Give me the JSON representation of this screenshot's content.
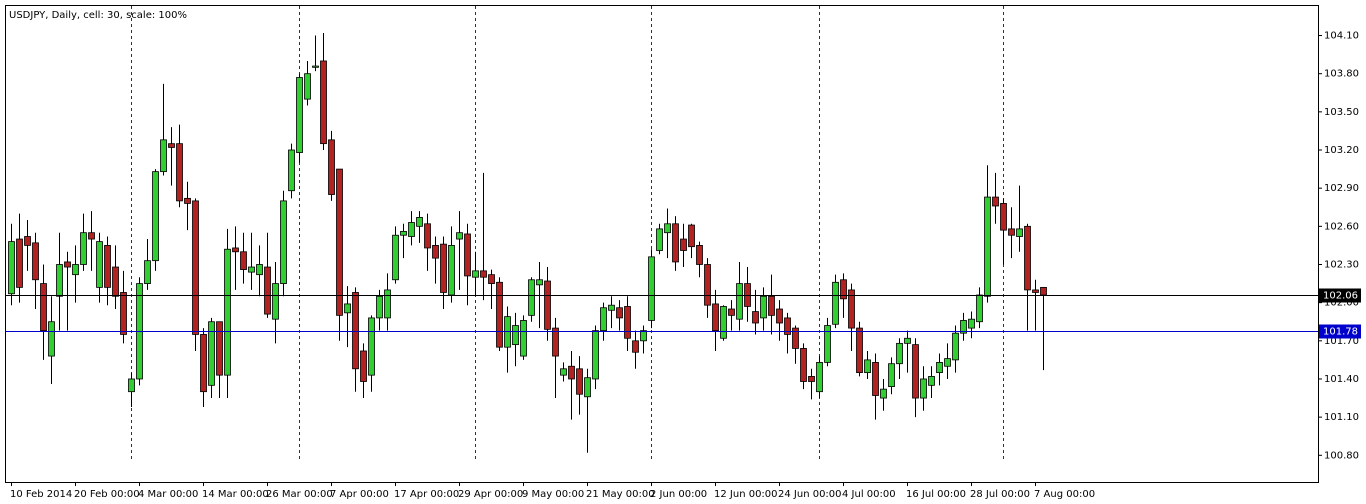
{
  "chart_data": {
    "type": "candlestick",
    "title": "USDJPY, Daily, cell: 30, scale: 100%",
    "categories": [
      "10 Feb 2014",
      null,
      null,
      null,
      null,
      null,
      null,
      null,
      "20 Feb 00:00",
      null,
      null,
      null,
      null,
      null,
      null,
      null,
      "4 Mar 00:00",
      null,
      null,
      null,
      null,
      null,
      null,
      null,
      "14 Mar 00:00",
      null,
      null,
      null,
      null,
      null,
      null,
      null,
      "26 Mar 00:00",
      null,
      null,
      null,
      null,
      null,
      null,
      null,
      "7 Apr 00:00",
      null,
      null,
      null,
      null,
      null,
      null,
      null,
      "17 Apr 00:00",
      null,
      null,
      null,
      null,
      null,
      null,
      null,
      "29 Apr 00:00",
      null,
      null,
      null,
      null,
      null,
      null,
      null,
      "9 May 00:00",
      null,
      null,
      null,
      null,
      null,
      null,
      null,
      "21 May 00:00",
      null,
      null,
      null,
      null,
      null,
      null,
      null,
      "2 Jun 00:00",
      null,
      null,
      null,
      null,
      null,
      null,
      null,
      "12 Jun 00:00",
      null,
      null,
      null,
      null,
      null,
      null,
      null,
      "24 Jun 00:00",
      null,
      null,
      null,
      null,
      null,
      null,
      null,
      "4 Jul 00:00",
      null,
      null,
      null,
      null,
      null,
      null,
      null,
      "16 Jul 00:00",
      null,
      null,
      null,
      null,
      null,
      null,
      null,
      "28 Jul 00:00",
      null,
      null,
      null,
      null,
      null,
      null,
      null,
      "7 Aug 00:00",
      null
    ],
    "open": [
      102.07,
      102.5,
      102.52,
      102.47,
      102.15,
      101.58,
      102.05,
      102.32,
      102.22,
      102.3,
      102.55,
      102.12,
      102.45,
      102.28,
      102.08,
      101.3,
      101.4,
      102.15,
      102.33,
      103.03,
      103.25,
      103.25,
      102.82,
      102.8,
      101.75,
      101.35,
      101.85,
      101.43,
      102.43,
      102.4,
      102.24,
      102.22,
      102.28,
      101.87,
      102.15,
      102.88,
      103.18,
      103.6,
      103.85,
      103.9,
      103.28,
      103.05,
      101.92,
      102.08,
      101.62,
      101.43,
      101.88,
      101.88,
      102.18,
      102.53,
      102.52,
      102.6,
      102.62,
      102.45,
      102.46,
      102.06,
      102.5,
      102.54,
      102.2,
      102.25,
      102.22,
      102.16,
      101.65,
      101.67,
      101.58,
      101.9,
      102.14,
      102.17,
      101.8,
      101.43,
      101.5,
      101.48,
      101.26,
      101.4,
      101.78,
      101.94,
      101.96,
      101.97,
      101.7,
      101.7,
      101.86,
      102.41,
      102.55,
      102.62,
      102.5,
      102.61,
      102.45,
      102.3,
      101.99,
      101.72,
      101.95,
      101.87,
      102.15,
      101.93,
      101.88,
      102.05,
      101.95,
      101.88,
      101.8,
      101.64,
      101.42,
      101.3,
      101.53,
      101.83,
      102.18,
      102.1,
      101.8,
      101.45,
      101.53,
      101.25,
      101.34,
      101.52,
      101.68,
      101.67,
      101.25,
      101.35,
      101.45,
      101.5,
      101.55,
      101.76,
      101.8,
      101.85,
      102.05,
      102.83,
      102.78,
      102.58,
      102.52,
      102.6,
      102.1,
      102.12
    ],
    "high": [
      102.62,
      102.7,
      102.65,
      102.55,
      102.3,
      102.05,
      102.55,
      102.4,
      102.45,
      102.7,
      102.72,
      102.55,
      102.52,
      102.45,
      102.25,
      101.45,
      102.2,
      102.5,
      103.05,
      103.72,
      103.38,
      103.4,
      102.95,
      102.82,
      101.8,
      101.88,
      101.85,
      102.58,
      102.6,
      102.55,
      102.55,
      102.45,
      102.55,
      102.32,
      102.88,
      103.25,
      103.8,
      103.9,
      104.1,
      104.12,
      103.35,
      103.05,
      102.13,
      102.12,
      101.68,
      101.9,
      102.1,
      102.23,
      102.6,
      102.62,
      102.72,
      102.72,
      102.7,
      102.52,
      102.52,
      102.6,
      102.72,
      102.62,
      102.4,
      103.02,
      102.26,
      102.2,
      101.97,
      101.92,
      101.9,
      102.2,
      102.32,
      102.28,
      101.88,
      101.53,
      101.62,
      101.58,
      101.48,
      101.82,
      102.0,
      102.05,
      102.02,
      102.05,
      101.78,
      101.82,
      102.42,
      102.62,
      102.74,
      102.68,
      102.62,
      102.62,
      102.48,
      102.35,
      102.1,
      101.98,
      102.02,
      102.32,
      102.28,
      102.1,
      102.12,
      102.22,
      102.02,
      101.92,
      101.82,
      101.68,
      101.48,
      101.58,
      101.88,
      102.22,
      102.23,
      102.15,
      101.85,
      101.62,
      101.6,
      101.4,
      101.57,
      101.72,
      101.78,
      101.72,
      101.5,
      101.5,
      101.6,
      101.68,
      101.82,
      101.92,
      101.93,
      102.12,
      103.08,
      103.02,
      102.82,
      102.75,
      102.92,
      102.62,
      102.18,
      102.12
    ],
    "low": [
      101.98,
      102.0,
      102.25,
      101.95,
      101.55,
      101.36,
      101.78,
      101.78,
      102.0,
      102.25,
      102.25,
      102.0,
      101.98,
      101.95,
      101.68,
      101.18,
      101.35,
      102.1,
      102.25,
      103.0,
      102.92,
      102.75,
      102.57,
      101.62,
      101.18,
      101.25,
      101.25,
      101.25,
      102.1,
      102.15,
      102.1,
      102.05,
      101.88,
      101.68,
      102.05,
      102.82,
      103.1,
      103.55,
      103.82,
      103.2,
      102.8,
      101.7,
      101.65,
      101.3,
      101.25,
      101.3,
      101.78,
      101.78,
      102.15,
      102.35,
      102.45,
      102.47,
      102.25,
      102.15,
      101.95,
      102.0,
      102.1,
      101.98,
      102.05,
      102.02,
      101.95,
      101.62,
      101.45,
      101.5,
      101.55,
      101.85,
      101.8,
      101.7,
      101.25,
      101.38,
      101.08,
      101.12,
      100.82,
      101.32,
      101.7,
      101.8,
      101.78,
      101.62,
      101.48,
      101.6,
      101.8,
      102.38,
      102.35,
      102.25,
      102.28,
      102.35,
      102.2,
      101.88,
      101.62,
      101.7,
      101.78,
      101.78,
      101.85,
      101.75,
      101.78,
      101.75,
      101.7,
      101.6,
      101.52,
      101.32,
      101.24,
      101.25,
      101.5,
      101.8,
      101.88,
      101.62,
      101.42,
      101.4,
      101.08,
      101.15,
      101.28,
      101.4,
      101.45,
      101.1,
      101.15,
      101.25,
      101.35,
      101.4,
      101.45,
      101.7,
      101.72,
      101.8,
      102.0,
      102.62,
      102.3,
      102.35,
      102.4,
      101.78,
      101.78,
      101.47
    ],
    "close": [
      102.48,
      102.12,
      102.45,
      102.18,
      101.78,
      101.85,
      102.3,
      102.28,
      102.3,
      102.55,
      102.5,
      102.48,
      102.12,
      102.05,
      101.75,
      101.4,
      102.15,
      102.33,
      103.03,
      103.28,
      103.22,
      102.8,
      102.78,
      101.75,
      101.3,
      101.85,
      101.43,
      102.42,
      102.4,
      102.26,
      102.28,
      102.3,
      101.91,
      102.15,
      102.8,
      103.2,
      103.77,
      103.8,
      103.86,
      103.25,
      102.85,
      101.9,
      101.99,
      101.48,
      101.38,
      101.88,
      102.05,
      102.1,
      102.53,
      102.56,
      102.63,
      102.67,
      102.43,
      102.35,
      102.08,
      102.45,
      102.55,
      102.21,
      102.25,
      102.2,
      102.15,
      101.65,
      101.89,
      101.82,
      101.86,
      102.18,
      102.18,
      101.79,
      101.58,
      101.48,
      101.4,
      101.28,
      101.41,
      101.78,
      101.96,
      101.98,
      101.88,
      101.72,
      101.61,
      101.78,
      102.36,
      102.58,
      102.62,
      102.32,
      102.41,
      102.44,
      102.3,
      101.98,
      101.78,
      101.97,
      101.9,
      102.15,
      101.97,
      101.84,
      102.05,
      101.9,
      101.84,
      101.75,
      101.64,
      101.38,
      101.38,
      101.53,
      101.82,
      102.16,
      102.03,
      101.8,
      101.45,
      101.55,
      101.27,
      101.32,
      101.52,
      101.68,
      101.72,
      101.25,
      101.4,
      101.42,
      101.53,
      101.56,
      101.76,
      101.86,
      101.87,
      102.06,
      102.83,
      102.76,
      102.57,
      102.53,
      102.58,
      102.1,
      102.08,
      102.06
    ],
    "up_color": "#32cd32",
    "down_color": "#b22222",
    "ylim": [
      100.59,
      104.34
    ],
    "yticks": [
      {
        "value": 104.1,
        "label": "104.10"
      },
      {
        "value": 103.8,
        "label": "103.80"
      },
      {
        "value": 103.5,
        "label": "103.50"
      },
      {
        "value": 103.2,
        "label": "103.20"
      },
      {
        "value": 102.9,
        "label": "102.90"
      },
      {
        "value": 102.6,
        "label": "102.60"
      },
      {
        "value": 102.3,
        "label": "102.30"
      },
      {
        "value": 102.0,
        "label": "102.00"
      },
      {
        "value": 101.7,
        "label": "101.70"
      },
      {
        "value": 101.4,
        "label": "101.40"
      },
      {
        "value": 101.1,
        "label": "101.10"
      },
      {
        "value": 100.8,
        "label": "100.80"
      }
    ],
    "separators": [
      15,
      36,
      58,
      80,
      101,
      124
    ],
    "price_lines": [
      {
        "value": 102.06,
        "color": "#000000"
      },
      {
        "value": 101.78,
        "color": "#0000cc"
      }
    ]
  }
}
